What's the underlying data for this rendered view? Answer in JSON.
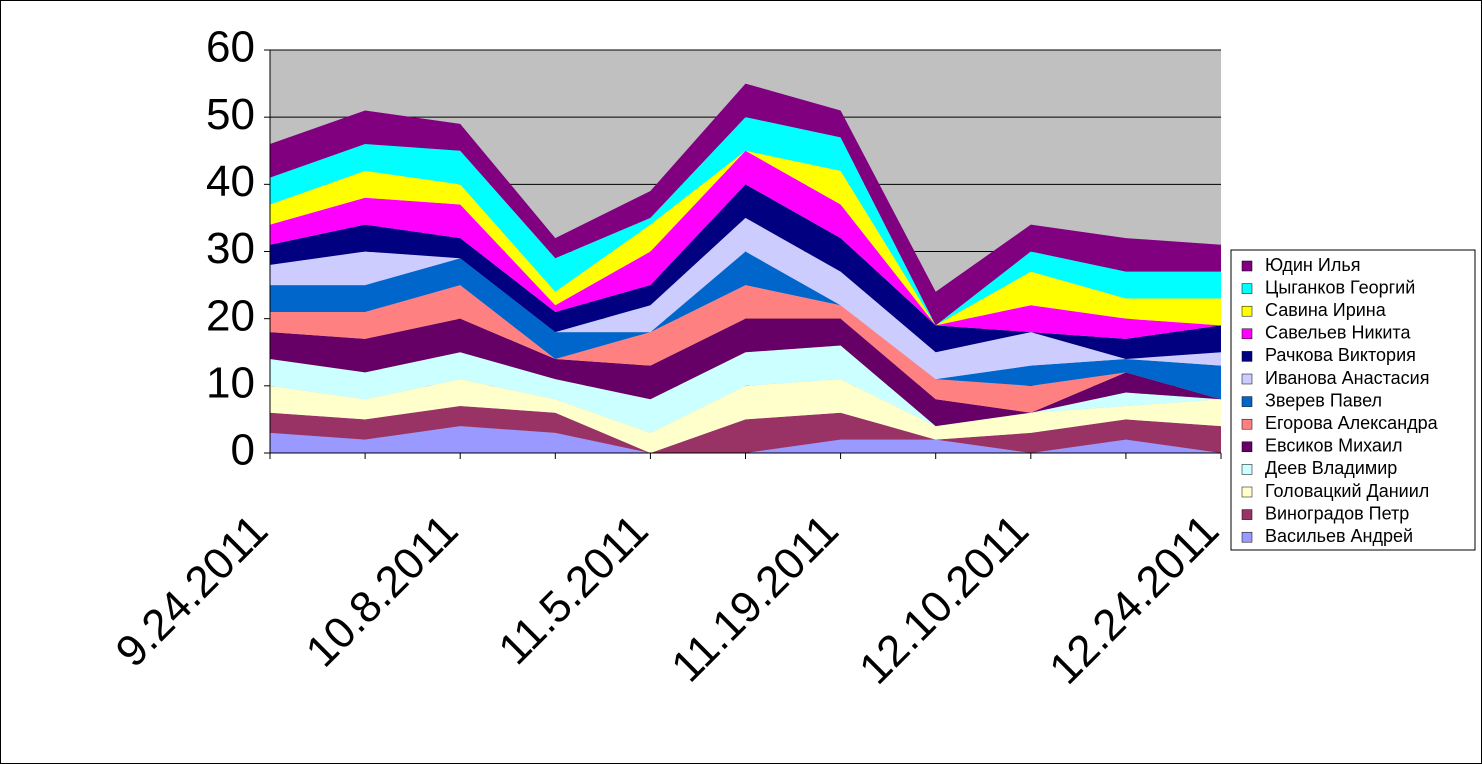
{
  "chart_data": {
    "type": "area",
    "stacked": true,
    "categories": [
      "9.24.2011",
      null,
      "10.8.2011",
      null,
      "11.5.2011",
      null,
      "11.19.2011",
      null,
      "12.10.2011",
      null,
      "12.24.2011"
    ],
    "ylim": [
      0,
      60
    ],
    "yticks": [
      0,
      10,
      20,
      30,
      40,
      50,
      60
    ],
    "grid": true,
    "legend": "right",
    "series": [
      {
        "name": "Васильев Андрей",
        "color": "#9999ff",
        "values": [
          3,
          2,
          4,
          3,
          0,
          0,
          2,
          2,
          0,
          2,
          0
        ]
      },
      {
        "name": "Виноградов Петр",
        "color": "#993366",
        "values": [
          3,
          3,
          3,
          3,
          0,
          5,
          4,
          0,
          3,
          3,
          4
        ]
      },
      {
        "name": "Головацкий Даниил",
        "color": "#ffffcc",
        "values": [
          4,
          3,
          4,
          2,
          3,
          5,
          5,
          2,
          3,
          2,
          4
        ]
      },
      {
        "name": "Деев Владимир",
        "color": "#ccffff",
        "values": [
          4,
          4,
          4,
          3,
          5,
          5,
          5,
          0,
          0,
          2,
          0
        ]
      },
      {
        "name": "Евсиков Михаил",
        "color": "#660066",
        "values": [
          4,
          5,
          5,
          3,
          5,
          5,
          4,
          4,
          0,
          3,
          0
        ]
      },
      {
        "name": "Егорова Александра",
        "color": "#ff8080",
        "values": [
          3,
          4,
          5,
          0,
          5,
          5,
          2,
          3,
          4,
          0,
          0
        ]
      },
      {
        "name": "Зверев Павел",
        "color": "#0066cc",
        "values": [
          4,
          4,
          4,
          4,
          0,
          5,
          0,
          0,
          3,
          2,
          5
        ]
      },
      {
        "name": "Иванова Анастасия",
        "color": "#ccccff",
        "values": [
          3,
          5,
          0,
          0,
          4,
          5,
          5,
          4,
          5,
          0,
          2
        ]
      },
      {
        "name": "Рачкова Виктория",
        "color": "#000080",
        "values": [
          3,
          4,
          3,
          3,
          3,
          5,
          5,
          4,
          0,
          3,
          4
        ]
      },
      {
        "name": "Савельев Никита",
        "color": "#ff00ff",
        "values": [
          3,
          4,
          5,
          1,
          5,
          5,
          5,
          0,
          4,
          3,
          0
        ]
      },
      {
        "name": "Савина Ирина",
        "color": "#ffff00",
        "values": [
          3,
          4,
          3,
          2,
          4,
          0,
          5,
          0,
          5,
          3,
          4
        ]
      },
      {
        "name": "Цыганков Георгий",
        "color": "#00ffff",
        "values": [
          4,
          4,
          5,
          5,
          1,
          5,
          5,
          0,
          3,
          4,
          4
        ]
      },
      {
        "name": "Юдин Илья",
        "color": "#800080",
        "values": [
          5,
          5,
          4,
          3,
          4,
          5,
          4,
          5,
          4,
          5,
          4
        ]
      }
    ]
  }
}
